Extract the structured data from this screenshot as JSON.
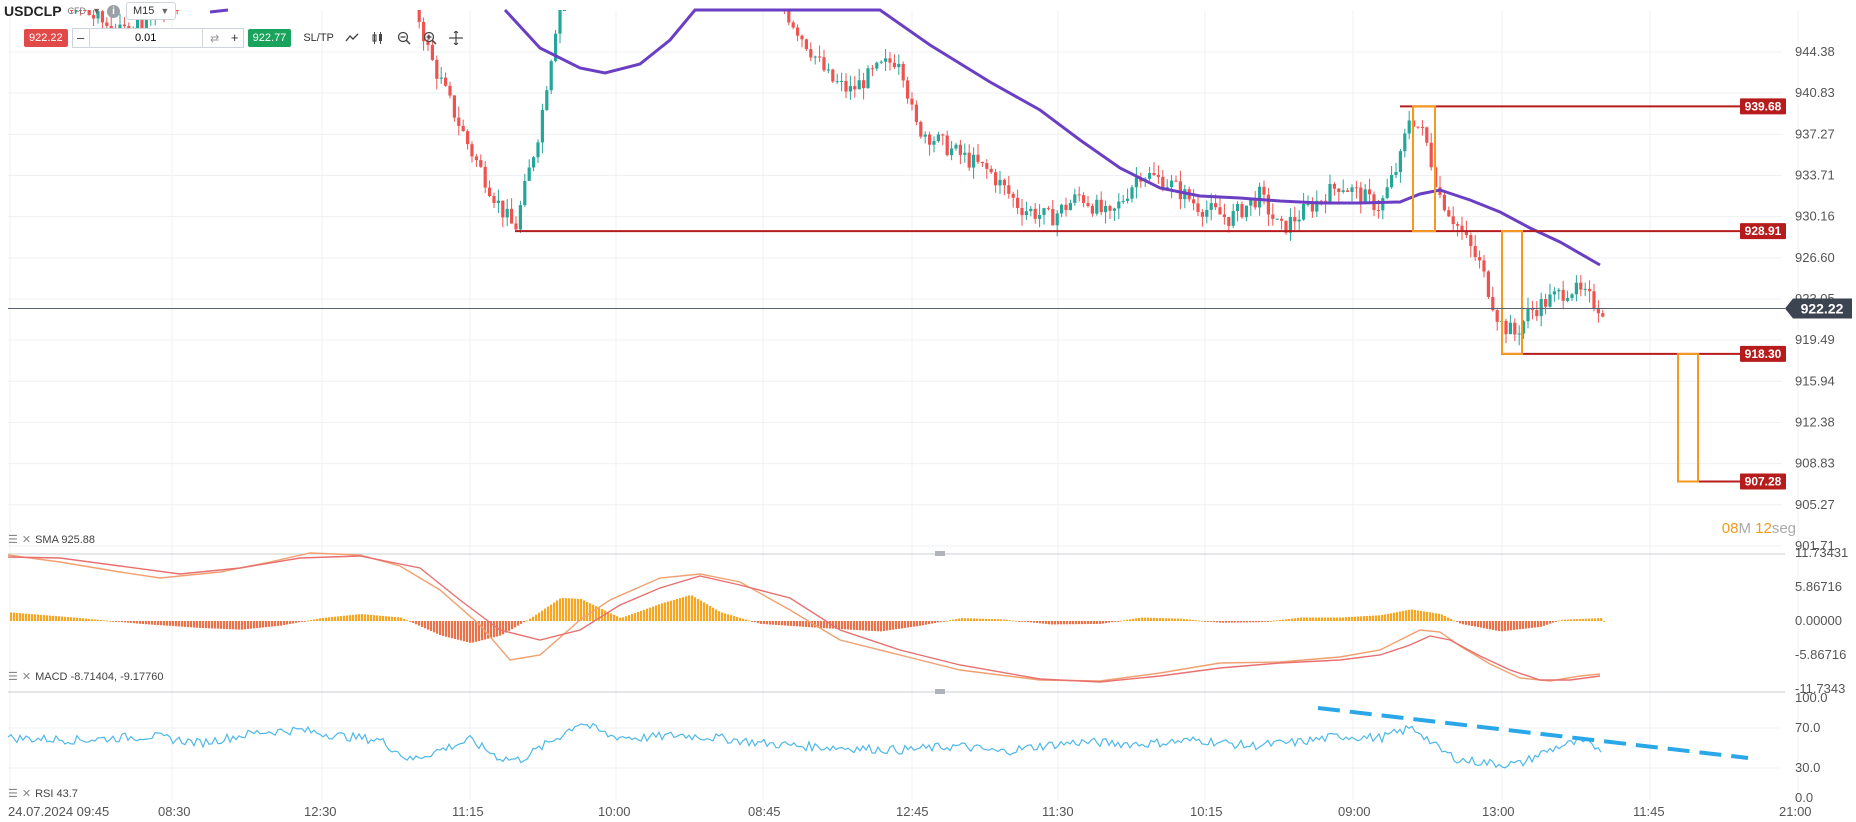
{
  "header": {
    "symbol": "USDCLP",
    "instrument_type": "CFD",
    "timeframe": "M15",
    "info_icon": "info-icon"
  },
  "trade_panel": {
    "sell_price": "922.22",
    "buy_price": "922.77",
    "quantity": "0.01",
    "minus": "–",
    "plus": "+",
    "sltp_label": "SL/TP",
    "icons": [
      "line-tool-icon",
      "candles-icon",
      "zoom-out-icon",
      "zoom-in-icon",
      "crosshair-icon"
    ]
  },
  "price_axis": {
    "ticks": [
      944.38,
      940.83,
      937.27,
      933.71,
      930.16,
      926.6,
      923.05,
      919.49,
      915.94,
      912.38,
      908.83,
      905.27,
      901.71
    ],
    "current_price": "922.22",
    "level_labels": [
      "939.68",
      "928.91",
      "918.30",
      "907.28"
    ]
  },
  "time_axis": {
    "labels": [
      "24.07.2024 09:45",
      "08:30",
      "12:30",
      "11:15",
      "10:00",
      "08:45",
      "12:45",
      "11:30",
      "10:15",
      "09:00",
      "13:00",
      "11:45",
      "21:00"
    ]
  },
  "countdown": {
    "minutes": "08",
    "minute_unit": "M",
    "seconds": "12",
    "second_unit": "seg"
  },
  "indicators": {
    "sma_label": "SMA 925.88",
    "macd_label": "MACD -8.71404, -9.17760",
    "rsi_label": "RSI 43.7",
    "macd_axis": [
      "11.73431",
      "5.86716",
      "0.00000",
      "-5.86716",
      "-11.7343"
    ],
    "rsi_axis": [
      "100.0",
      "70.0",
      "30.0",
      "0.0"
    ]
  },
  "colors": {
    "bull": "#26a69a",
    "bear": "#ef5350",
    "sma": "#6a3fc4",
    "support_line": "#b71c1c",
    "level_badge": "#b71c1c",
    "box": "#f39a1f",
    "macd_positive": "#f5a623",
    "macd_negative": "#e8734a",
    "macd_line": "#f0a070",
    "signal_line": "#e87070",
    "rsi_line": "#4db8e8",
    "rsi_trend": "#2aa7e8",
    "price_badge": "#3d4451"
  }
}
